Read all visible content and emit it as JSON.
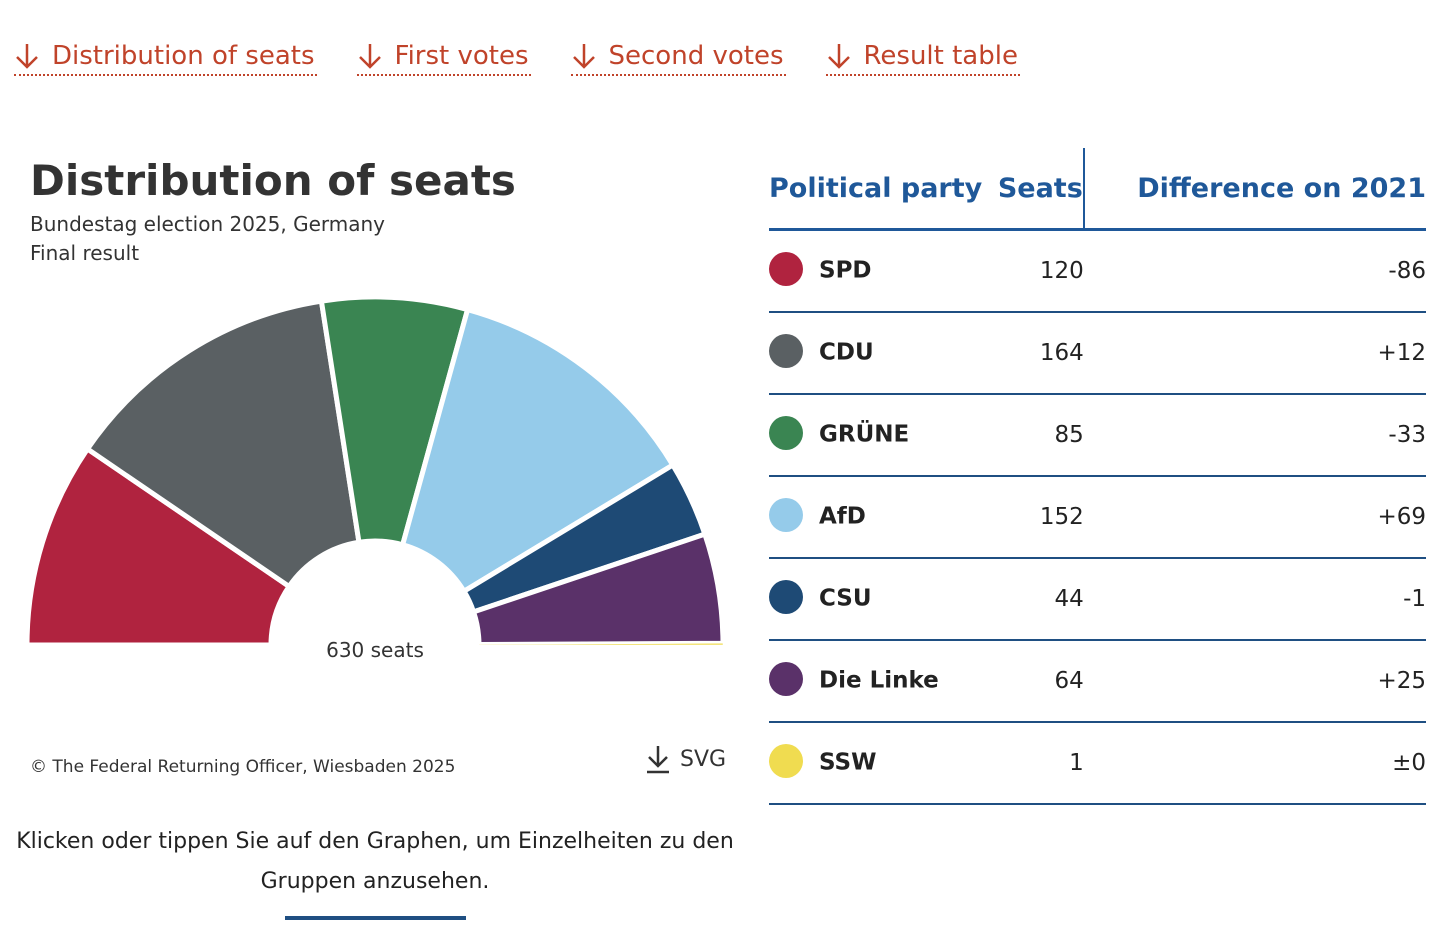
{
  "nav": [
    {
      "label": "Distribution of seats"
    },
    {
      "label": "First votes"
    },
    {
      "label": "Second votes"
    },
    {
      "label": "Result table"
    }
  ],
  "chart": {
    "title": "Distribution of seats",
    "subtitle1": "Bundestag election 2025, Germany",
    "subtitle2": "Final result",
    "center_label": "630 seats",
    "copyright": "© The Federal Returning Officer, Wiesbaden 2025",
    "download_label": "SVG",
    "hint": "Klicken oder tippen Sie auf den Graphen, um Einzelheiten zu den Gruppen anzusehen."
  },
  "icons": {
    "nav_arrow": "arrow-down-icon",
    "download": "download-icon"
  },
  "chart_data": {
    "type": "pie",
    "variant": "parliament-semicircle",
    "title": "Distribution of seats",
    "subtitle": "Bundestag election 2025, Germany",
    "total": 630,
    "total_label": "630 seats",
    "categories": [
      "SPD",
      "CDU",
      "GRÜNE",
      "AfD",
      "CSU",
      "Die Linke",
      "SSW"
    ],
    "values": [
      120,
      164,
      85,
      152,
      44,
      64,
      1
    ],
    "colors": [
      "#b0233f",
      "#5a6063",
      "#3a8552",
      "#95cbea",
      "#1e4a75",
      "#5a3169",
      "#f0dc50"
    ]
  },
  "table": {
    "headers": {
      "party": "Political party",
      "seats": "Seats",
      "diff": "Difference on 2021"
    },
    "rows": [
      {
        "party": "SPD",
        "seats": "120",
        "diff": "-86",
        "color": "#b0233f"
      },
      {
        "party": "CDU",
        "seats": "164",
        "diff": "+12",
        "color": "#5a6063"
      },
      {
        "party": "GRÜNE",
        "seats": "85",
        "diff": "-33",
        "color": "#3a8552"
      },
      {
        "party": "AfD",
        "seats": "152",
        "diff": "+69",
        "color": "#95cbea"
      },
      {
        "party": "CSU",
        "seats": "44",
        "diff": "-1",
        "color": "#1e4a75"
      },
      {
        "party": "Die Linke",
        "seats": "64",
        "diff": "+25",
        "color": "#5a3169"
      },
      {
        "party": "SSW",
        "seats": "1",
        "diff": "±0",
        "color": "#f0dc50"
      }
    ]
  }
}
